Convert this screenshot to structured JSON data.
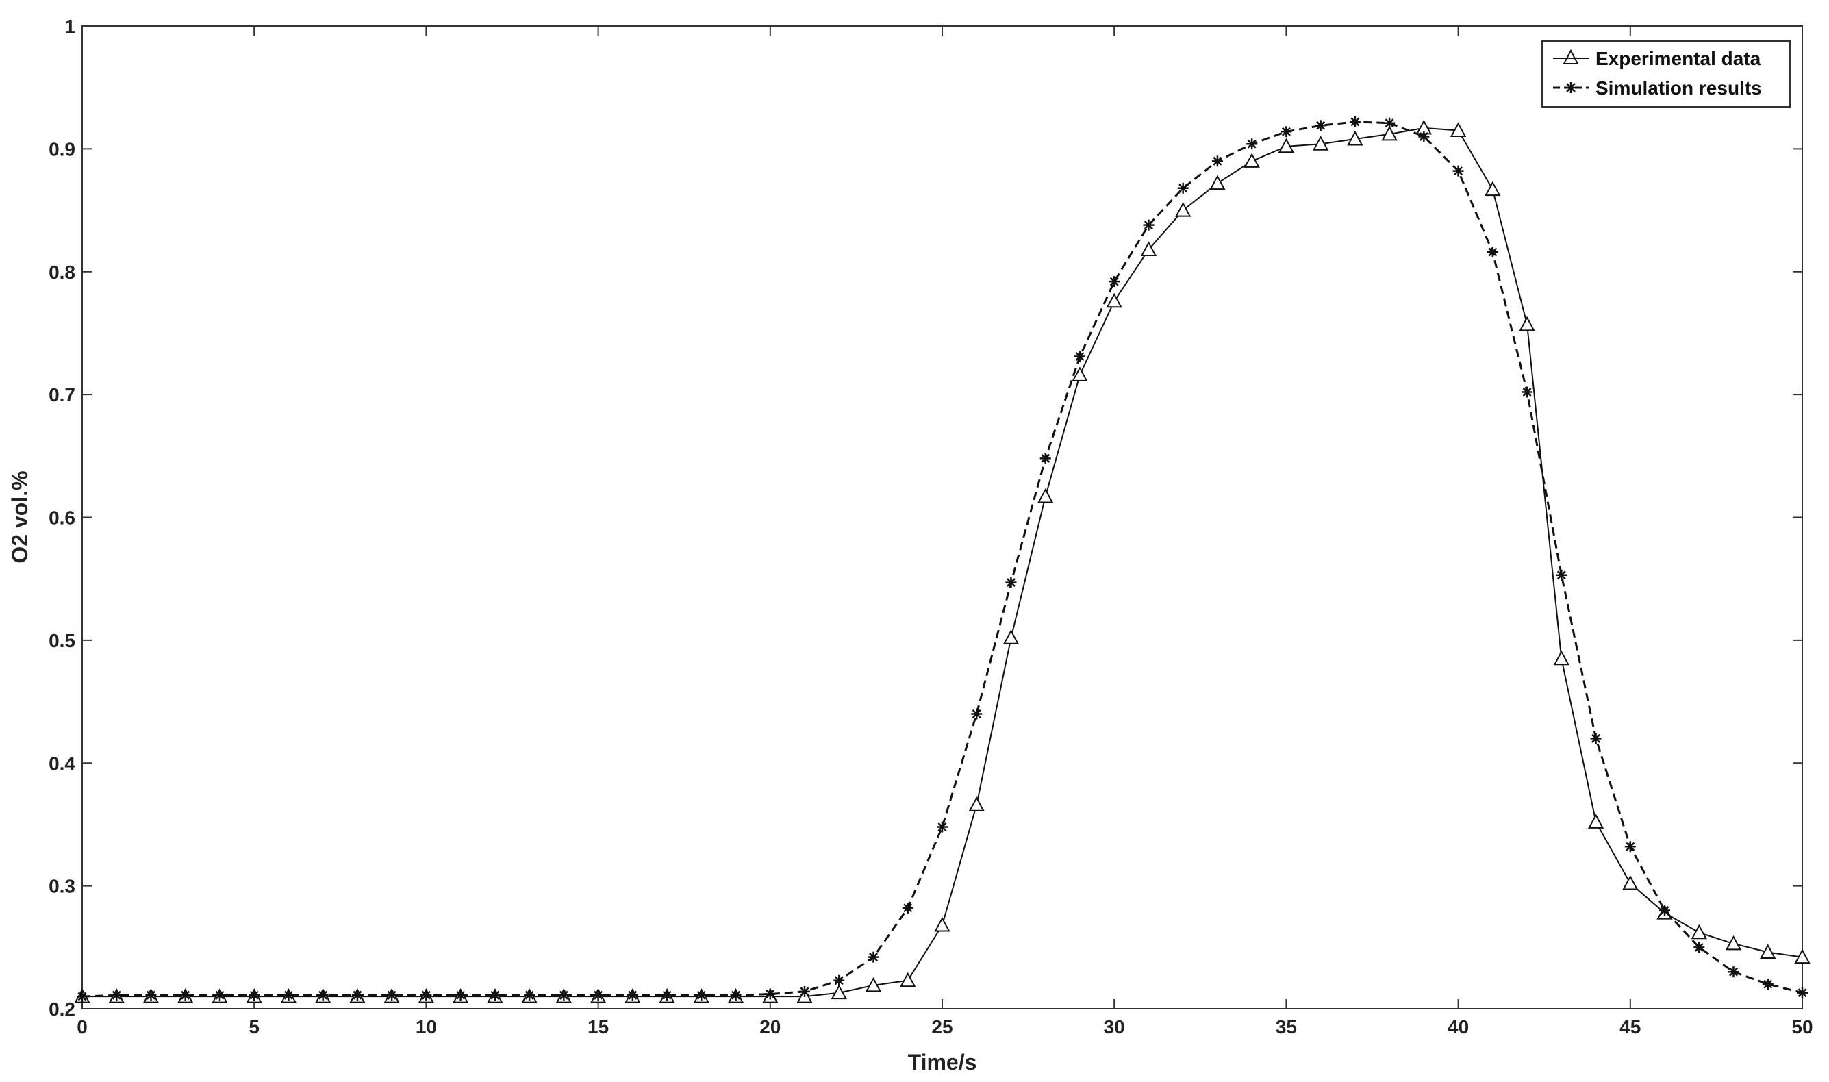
{
  "chart_data": {
    "type": "line",
    "title": "",
    "xlabel": "Time/s",
    "ylabel": "O2 vol.%",
    "xlim": [
      0,
      50
    ],
    "ylim": [
      0.2,
      1
    ],
    "xticks": [
      0,
      5,
      10,
      15,
      20,
      25,
      30,
      35,
      40,
      45,
      50
    ],
    "xtick_labels": [
      "0",
      "5",
      "10",
      "15",
      "20",
      "25",
      "30",
      "35",
      "40",
      "45",
      "50"
    ],
    "yticks": [
      0.2,
      0.3,
      0.4,
      0.5,
      0.6,
      0.7,
      0.8,
      0.9,
      1
    ],
    "ytick_labels": [
      "0.2",
      "0.3",
      "0.4",
      "0.5",
      "0.6",
      "0.7",
      "0.8",
      "0.9",
      "1"
    ],
    "grid": false,
    "legend_position": "top-right",
    "x": [
      0,
      1,
      2,
      3,
      4,
      5,
      6,
      7,
      8,
      9,
      10,
      11,
      12,
      13,
      14,
      15,
      16,
      17,
      18,
      19,
      20,
      21,
      22,
      23,
      24,
      25,
      26,
      27,
      28,
      29,
      30,
      31,
      32,
      33,
      34,
      35,
      36,
      37,
      38,
      39,
      40,
      41,
      42,
      43,
      44,
      45,
      46,
      47,
      48,
      49,
      50
    ],
    "series": [
      {
        "name": "Experimental data",
        "marker": "triangle",
        "line": "solid",
        "color": "#111111",
        "values": [
          0.21,
          0.21,
          0.21,
          0.21,
          0.21,
          0.21,
          0.21,
          0.21,
          0.21,
          0.21,
          0.21,
          0.21,
          0.21,
          0.21,
          0.21,
          0.21,
          0.21,
          0.21,
          0.21,
          0.21,
          0.21,
          0.21,
          0.213,
          0.219,
          0.223,
          0.268,
          0.366,
          0.502,
          0.617,
          0.716,
          0.776,
          0.818,
          0.85,
          0.872,
          0.89,
          0.902,
          0.904,
          0.908,
          0.912,
          0.917,
          0.915,
          0.867,
          0.757,
          0.485,
          0.352,
          0.302,
          0.278,
          0.262,
          0.253,
          0.246,
          0.242
        ]
      },
      {
        "name": "Simulation results",
        "marker": "star",
        "line": "dashed",
        "color": "#111111",
        "values": [
          0.21,
          0.211,
          0.211,
          0.211,
          0.211,
          0.211,
          0.211,
          0.211,
          0.211,
          0.211,
          0.211,
          0.211,
          0.211,
          0.211,
          0.211,
          0.211,
          0.211,
          0.211,
          0.211,
          0.211,
          0.212,
          0.214,
          0.223,
          0.242,
          0.282,
          0.348,
          0.44,
          0.547,
          0.648,
          0.731,
          0.792,
          0.838,
          0.868,
          0.89,
          0.904,
          0.914,
          0.919,
          0.922,
          0.921,
          0.91,
          0.882,
          0.816,
          0.702,
          0.553,
          0.42,
          0.332,
          0.28,
          0.25,
          0.23,
          0.22,
          0.213
        ]
      }
    ]
  }
}
